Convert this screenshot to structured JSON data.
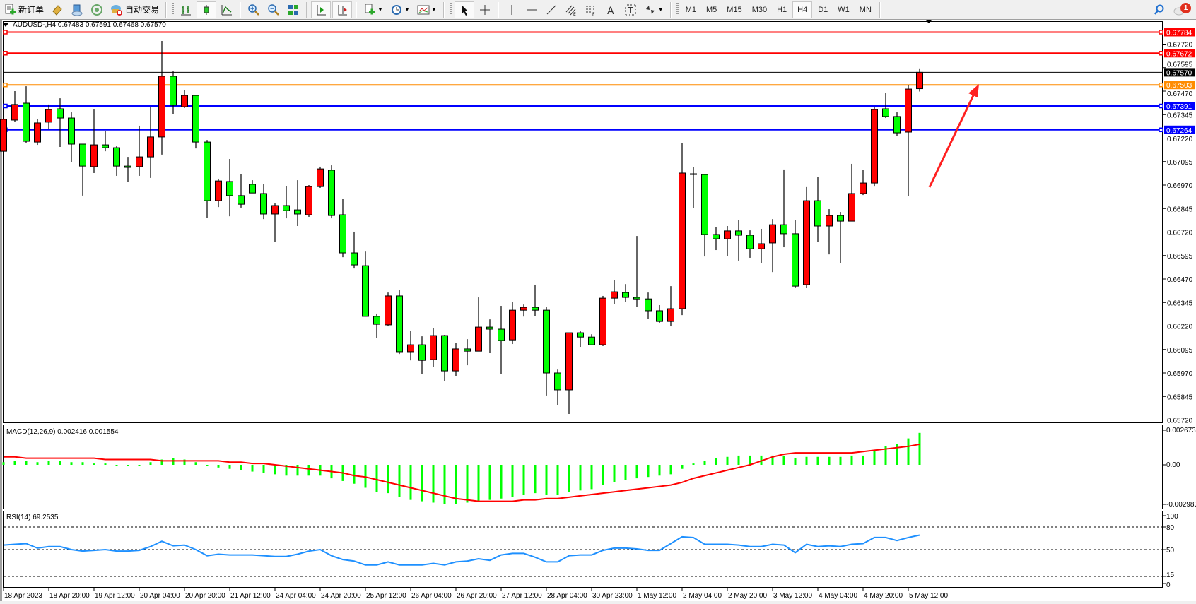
{
  "toolbar": {
    "new_order": "新订单",
    "auto_trading": "自动交易",
    "timeframes": [
      "M1",
      "M5",
      "M15",
      "M30",
      "H1",
      "H4",
      "D1",
      "W1",
      "MN"
    ],
    "active_timeframe": "H4",
    "notification_count": "1",
    "icons": [
      "new-order-icon",
      "market-watch-icon",
      "navigator-icon",
      "signals-icon",
      "auto-trading-icon",
      "bar-chart-icon",
      "candlestick-icon",
      "line-chart-icon",
      "zoom-in-icon",
      "zoom-out-icon",
      "tile-windows-icon",
      "autoscroll-icon",
      "chart-shift-icon",
      "indicators-icon",
      "periods-icon",
      "templates-icon",
      "cursor-icon",
      "crosshair-icon",
      "vertical-line-icon",
      "horizontal-line-icon",
      "trendline-icon",
      "equidistant-channel-icon",
      "fibonacci-icon",
      "text-icon",
      "text-label-icon",
      "arrows-icon",
      "search-icon",
      "notification-icon"
    ]
  },
  "chart_header": "AUDUSD-,H4  0.67483 0.67591 0.67468 0.67570",
  "macd_header": "MACD(12,26,9) 0.002416 0.001554",
  "rsi_header": "RSI(14) 69.2535",
  "chart_data": {
    "type": "candlestick",
    "symbol": "AUDUSD-",
    "timeframe": "H4",
    "colors": {
      "bull": "#FF0000",
      "bear": "#00FF00",
      "outline": "#000000",
      "macd_histogram": "#00FF00",
      "macd_signal": "#FF0000",
      "rsi": "#1E90FF"
    },
    "open": [
      0.6715,
      0.67316,
      0.67406,
      0.67199,
      0.67305,
      0.67376,
      0.67327,
      0.67188,
      0.67068,
      0.67184,
      0.67169,
      0.67071,
      0.67068,
      0.6712,
      0.67226,
      0.67549,
      0.67387,
      0.67447,
      0.67199,
      0.66887,
      0.66989,
      0.66914,
      0.66974,
      0.66925,
      0.66816,
      0.66861,
      0.66838,
      0.66812,
      0.66962,
      0.67049,
      0.66812,
      0.66609,
      0.66541,
      0.66271,
      0.66226,
      0.6638,
      0.66083,
      0.6612,
      0.66041,
      0.66169,
      0.65981,
      0.66098,
      0.66086,
      0.66214,
      0.66203,
      0.66146,
      0.66304,
      0.66319,
      0.66304,
      0.6597,
      0.6588,
      0.66184,
      0.66161,
      0.6612,
      0.66368,
      0.66398,
      0.66372,
      0.66364,
      0.66301,
      0.66244,
      0.66312,
      0.6703,
      0.67026,
      0.66707,
      0.66684,
      0.66726,
      0.66703,
      0.66631,
      0.66662,
      0.66759,
      0.66711,
      0.6644,
      0.66887,
      0.66752,
      0.66808,
      0.66778,
      0.66925,
      0.66981,
      0.67376,
      0.67335,
      0.67252,
      0.67483
    ],
    "high": [
      0.6733,
      0.6747,
      0.67496,
      0.67323,
      0.67399,
      0.67432,
      0.67357,
      0.67188,
      0.67372,
      0.67259,
      0.67177,
      0.6712,
      0.67286,
      0.67387,
      0.67737,
      0.67575,
      0.67474,
      0.67451,
      0.6721,
      0.67004,
      0.67109,
      0.6703,
      0.66996,
      0.66974,
      0.66872,
      0.66966,
      0.66996,
      0.6697,
      0.67068,
      0.67075,
      0.66895,
      0.66722,
      0.66616,
      0.66286,
      0.66398,
      0.6641,
      0.66195,
      0.66165,
      0.66207,
      0.66173,
      0.66131,
      0.6615,
      0.66372,
      0.66255,
      0.66327,
      0.66346,
      0.66334,
      0.6644,
      0.66323,
      0.65988,
      0.66184,
      0.66195,
      0.66176,
      0.6638,
      0.66466,
      0.66443,
      0.66699,
      0.66398,
      0.66331,
      0.66432,
      0.67192,
      0.67064,
      0.6703,
      0.66748,
      0.66752,
      0.66782,
      0.66729,
      0.66737,
      0.66789,
      0.67053,
      0.66782,
      0.66959,
      0.67015,
      0.66842,
      0.66827,
      0.67083,
      0.67049,
      0.67384,
      0.67459,
      0.67357,
      0.675,
      0.67591
    ],
    "low": [
      0.6714,
      0.67308,
      0.67195,
      0.67184,
      0.67267,
      0.67173,
      0.67094,
      0.66914,
      0.67034,
      0.6715,
      0.67019,
      0.66985,
      0.67019,
      0.67008,
      0.67132,
      0.67346,
      0.6738,
      0.67165,
      0.66797,
      0.66853,
      0.66804,
      0.6685,
      0.66928,
      0.66789,
      0.66669,
      0.66793,
      0.66752,
      0.66801,
      0.66955,
      0.66793,
      0.66586,
      0.66526,
      0.66271,
      0.66158,
      0.66218,
      0.66071,
      0.66037,
      0.65966,
      0.66003,
      0.65925,
      0.65955,
      0.66011,
      0.66086,
      0.66079,
      0.65966,
      0.66124,
      0.6627,
      0.66274,
      0.6585,
      0.658,
      0.65752,
      0.66109,
      0.6612,
      0.66113,
      0.66338,
      0.66346,
      0.66323,
      0.66259,
      0.66237,
      0.66218,
      0.66278,
      0.66846,
      0.6659,
      0.66624,
      0.66594,
      0.66568,
      0.66583,
      0.66553,
      0.66507,
      0.66639,
      0.66425,
      0.66421,
      0.66669,
      0.66601,
      0.66556,
      0.66778,
      0.66917,
      0.66962,
      0.67327,
      0.67233,
      0.6691,
      0.67468
    ],
    "close": [
      0.6732,
      0.67399,
      0.67203,
      0.67301,
      0.67372,
      0.67327,
      0.67188,
      0.67071,
      0.67184,
      0.67169,
      0.67071,
      0.67064,
      0.6712,
      0.67226,
      0.67549,
      0.67395,
      0.67447,
      0.67199,
      0.66887,
      0.66992,
      0.66914,
      0.66868,
      0.66928,
      0.66816,
      0.66861,
      0.66834,
      0.66816,
      0.66962,
      0.67056,
      0.66808,
      0.66609,
      0.66545,
      0.66271,
      0.66229,
      0.6638,
      0.66083,
      0.6612,
      0.66037,
      0.66169,
      0.65981,
      0.66098,
      0.66086,
      0.66214,
      0.66203,
      0.66143,
      0.66304,
      0.66319,
      0.66304,
      0.6597,
      0.6588,
      0.66184,
      0.66161,
      0.6612,
      0.66368,
      0.66402,
      0.66372,
      0.66364,
      0.66301,
      0.66244,
      0.66312,
      0.67034,
      0.6703,
      0.66707,
      0.66684,
      0.66726,
      0.66703,
      0.66631,
      0.66658,
      0.66759,
      0.66711,
      0.66432,
      0.66887,
      0.66752,
      0.66808,
      0.66778,
      0.66925,
      0.66981,
      0.67372,
      0.67335,
      0.67248,
      0.67481,
      0.6757
    ],
    "price_axis": {
      "ticks": [
        "0.67720",
        "0.67595",
        "0.67470",
        "0.67345",
        "0.67220",
        "0.67095",
        "0.66970",
        "0.66845",
        "0.66720",
        "0.66595",
        "0.66470",
        "0.66345",
        "0.66220",
        "0.66095",
        "0.65970",
        "0.65845",
        "0.65720"
      ]
    },
    "time_axis": {
      "labels": [
        "18 Apr 2023",
        "18 Apr 20:00",
        "19 Apr 12:00",
        "20 Apr 04:00",
        "20 Apr 20:00",
        "21 Apr 12:00",
        "24 Apr 04:00",
        "24 Apr 20:00",
        "25 Apr 12:00",
        "26 Apr 04:00",
        "26 Apr 20:00",
        "27 Apr 12:00",
        "28 Apr 04:00",
        "30 Apr 23:00",
        "1 May 12:00",
        "2 May 04:00",
        "2 May 20:00",
        "3 May 12:00",
        "4 May 04:00",
        "4 May 20:00",
        "5 May 12:00"
      ],
      "bars_per_label": 4
    },
    "horizontal_lines": [
      {
        "price": "0.67784",
        "color": "#FF0000"
      },
      {
        "price": "0.67672",
        "color": "#FF0000"
      },
      {
        "price": "0.67503",
        "color": "#FF8C00"
      },
      {
        "price": "0.67391",
        "color": "#0000FF"
      },
      {
        "price": "0.67264",
        "color": "#0000FF"
      }
    ],
    "bid_line": {
      "price": "0.67570",
      "color": "#000000"
    },
    "macd": {
      "axis_labels": [
        "0.002673",
        "0.00",
        "-0.002983"
      ],
      "ylim": [
        -0.002983,
        0.002673
      ],
      "histogram": [
        0.0002,
        0.0003,
        0.0003,
        0.0002,
        0.0003,
        0.0003,
        0.0002,
        0.0002,
        0.0001,
        0.0001,
        0.0,
        -0.0001,
        0.0,
        0.0002,
        0.0004,
        0.0005,
        0.0004,
        0.0002,
        -0.0001,
        -0.0002,
        -0.0003,
        -0.0004,
        -0.0005,
        -0.0006,
        -0.0007,
        -0.0008,
        -0.0008,
        -0.0008,
        -0.0008,
        -0.001,
        -0.0012,
        -0.0014,
        -0.0017,
        -0.002,
        -0.0021,
        -0.0024,
        -0.0026,
        -0.0027,
        -0.0028,
        -0.0029,
        -0.0029,
        -0.0028,
        -0.0027,
        -0.0026,
        -0.0025,
        -0.0024,
        -0.0022,
        -0.0021,
        -0.0022,
        -0.0022,
        -0.002,
        -0.0019,
        -0.0018,
        -0.0015,
        -0.0013,
        -0.0011,
        -0.001,
        -0.0009,
        -0.0008,
        -0.0007,
        -0.0003,
        0.0001,
        0.0003,
        0.0005,
        0.0006,
        0.0007,
        0.0007,
        0.0007,
        0.0007,
        0.0007,
        0.0005,
        0.0006,
        0.0006,
        0.0006,
        0.0006,
        0.0007,
        0.0007,
        0.0011,
        0.0014,
        0.0016,
        0.002,
        0.002416
      ],
      "signal": [
        0.0006,
        0.0006,
        0.0005,
        0.0005,
        0.0005,
        0.0005,
        0.0005,
        0.0005,
        0.0005,
        0.0004,
        0.0004,
        0.0004,
        0.0004,
        0.0004,
        0.0003,
        0.0003,
        0.0003,
        0.0003,
        0.0003,
        0.0003,
        0.0002,
        0.0002,
        0.0001,
        0.0001,
        0.0,
        -0.0001,
        -0.0002,
        -0.0003,
        -0.0004,
        -0.0005,
        -0.0006,
        -0.0008,
        -0.0009,
        -0.0011,
        -0.0013,
        -0.0015,
        -0.0017,
        -0.0019,
        -0.0021,
        -0.0023,
        -0.0025,
        -0.0026,
        -0.0027,
        -0.0027,
        -0.0027,
        -0.0027,
        -0.0026,
        -0.0026,
        -0.0025,
        -0.0025,
        -0.0024,
        -0.0023,
        -0.0022,
        -0.0021,
        -0.002,
        -0.0019,
        -0.0018,
        -0.0017,
        -0.0016,
        -0.0015,
        -0.0013,
        -0.001,
        -0.0008,
        -0.0006,
        -0.0004,
        -0.0002,
        0.0,
        0.0003,
        0.0006,
        0.0008,
        0.0009,
        0.0009,
        0.0009,
        0.0009,
        0.0009,
        0.0009,
        0.001,
        0.0011,
        0.0012,
        0.0013,
        0.0014,
        0.001554
      ]
    },
    "rsi": {
      "axis_labels": [
        "100",
        "80",
        "50",
        "15",
        "0"
      ],
      "levels": [
        80,
        50,
        15
      ],
      "ylim": [
        0,
        100
      ],
      "values": [
        56,
        57,
        58,
        52,
        54,
        54,
        50,
        48,
        49,
        50,
        48,
        48,
        49,
        54,
        61,
        55,
        56,
        50,
        42,
        44,
        43,
        43,
        43,
        42,
        41,
        41,
        44,
        48,
        50,
        42,
        37,
        35,
        30,
        30,
        34,
        30,
        30,
        30,
        32,
        30,
        34,
        35,
        38,
        36,
        43,
        45,
        45,
        40,
        34,
        34,
        42,
        43,
        43,
        49,
        52,
        52,
        51,
        49,
        49,
        58,
        67,
        66,
        57,
        57,
        57,
        56,
        54,
        54,
        57,
        56,
        46,
        57,
        54,
        55,
        54,
        57,
        58,
        66,
        66,
        62,
        66,
        69.2535
      ]
    },
    "annotation": {
      "type": "arrow",
      "color": "#FF0000"
    }
  }
}
